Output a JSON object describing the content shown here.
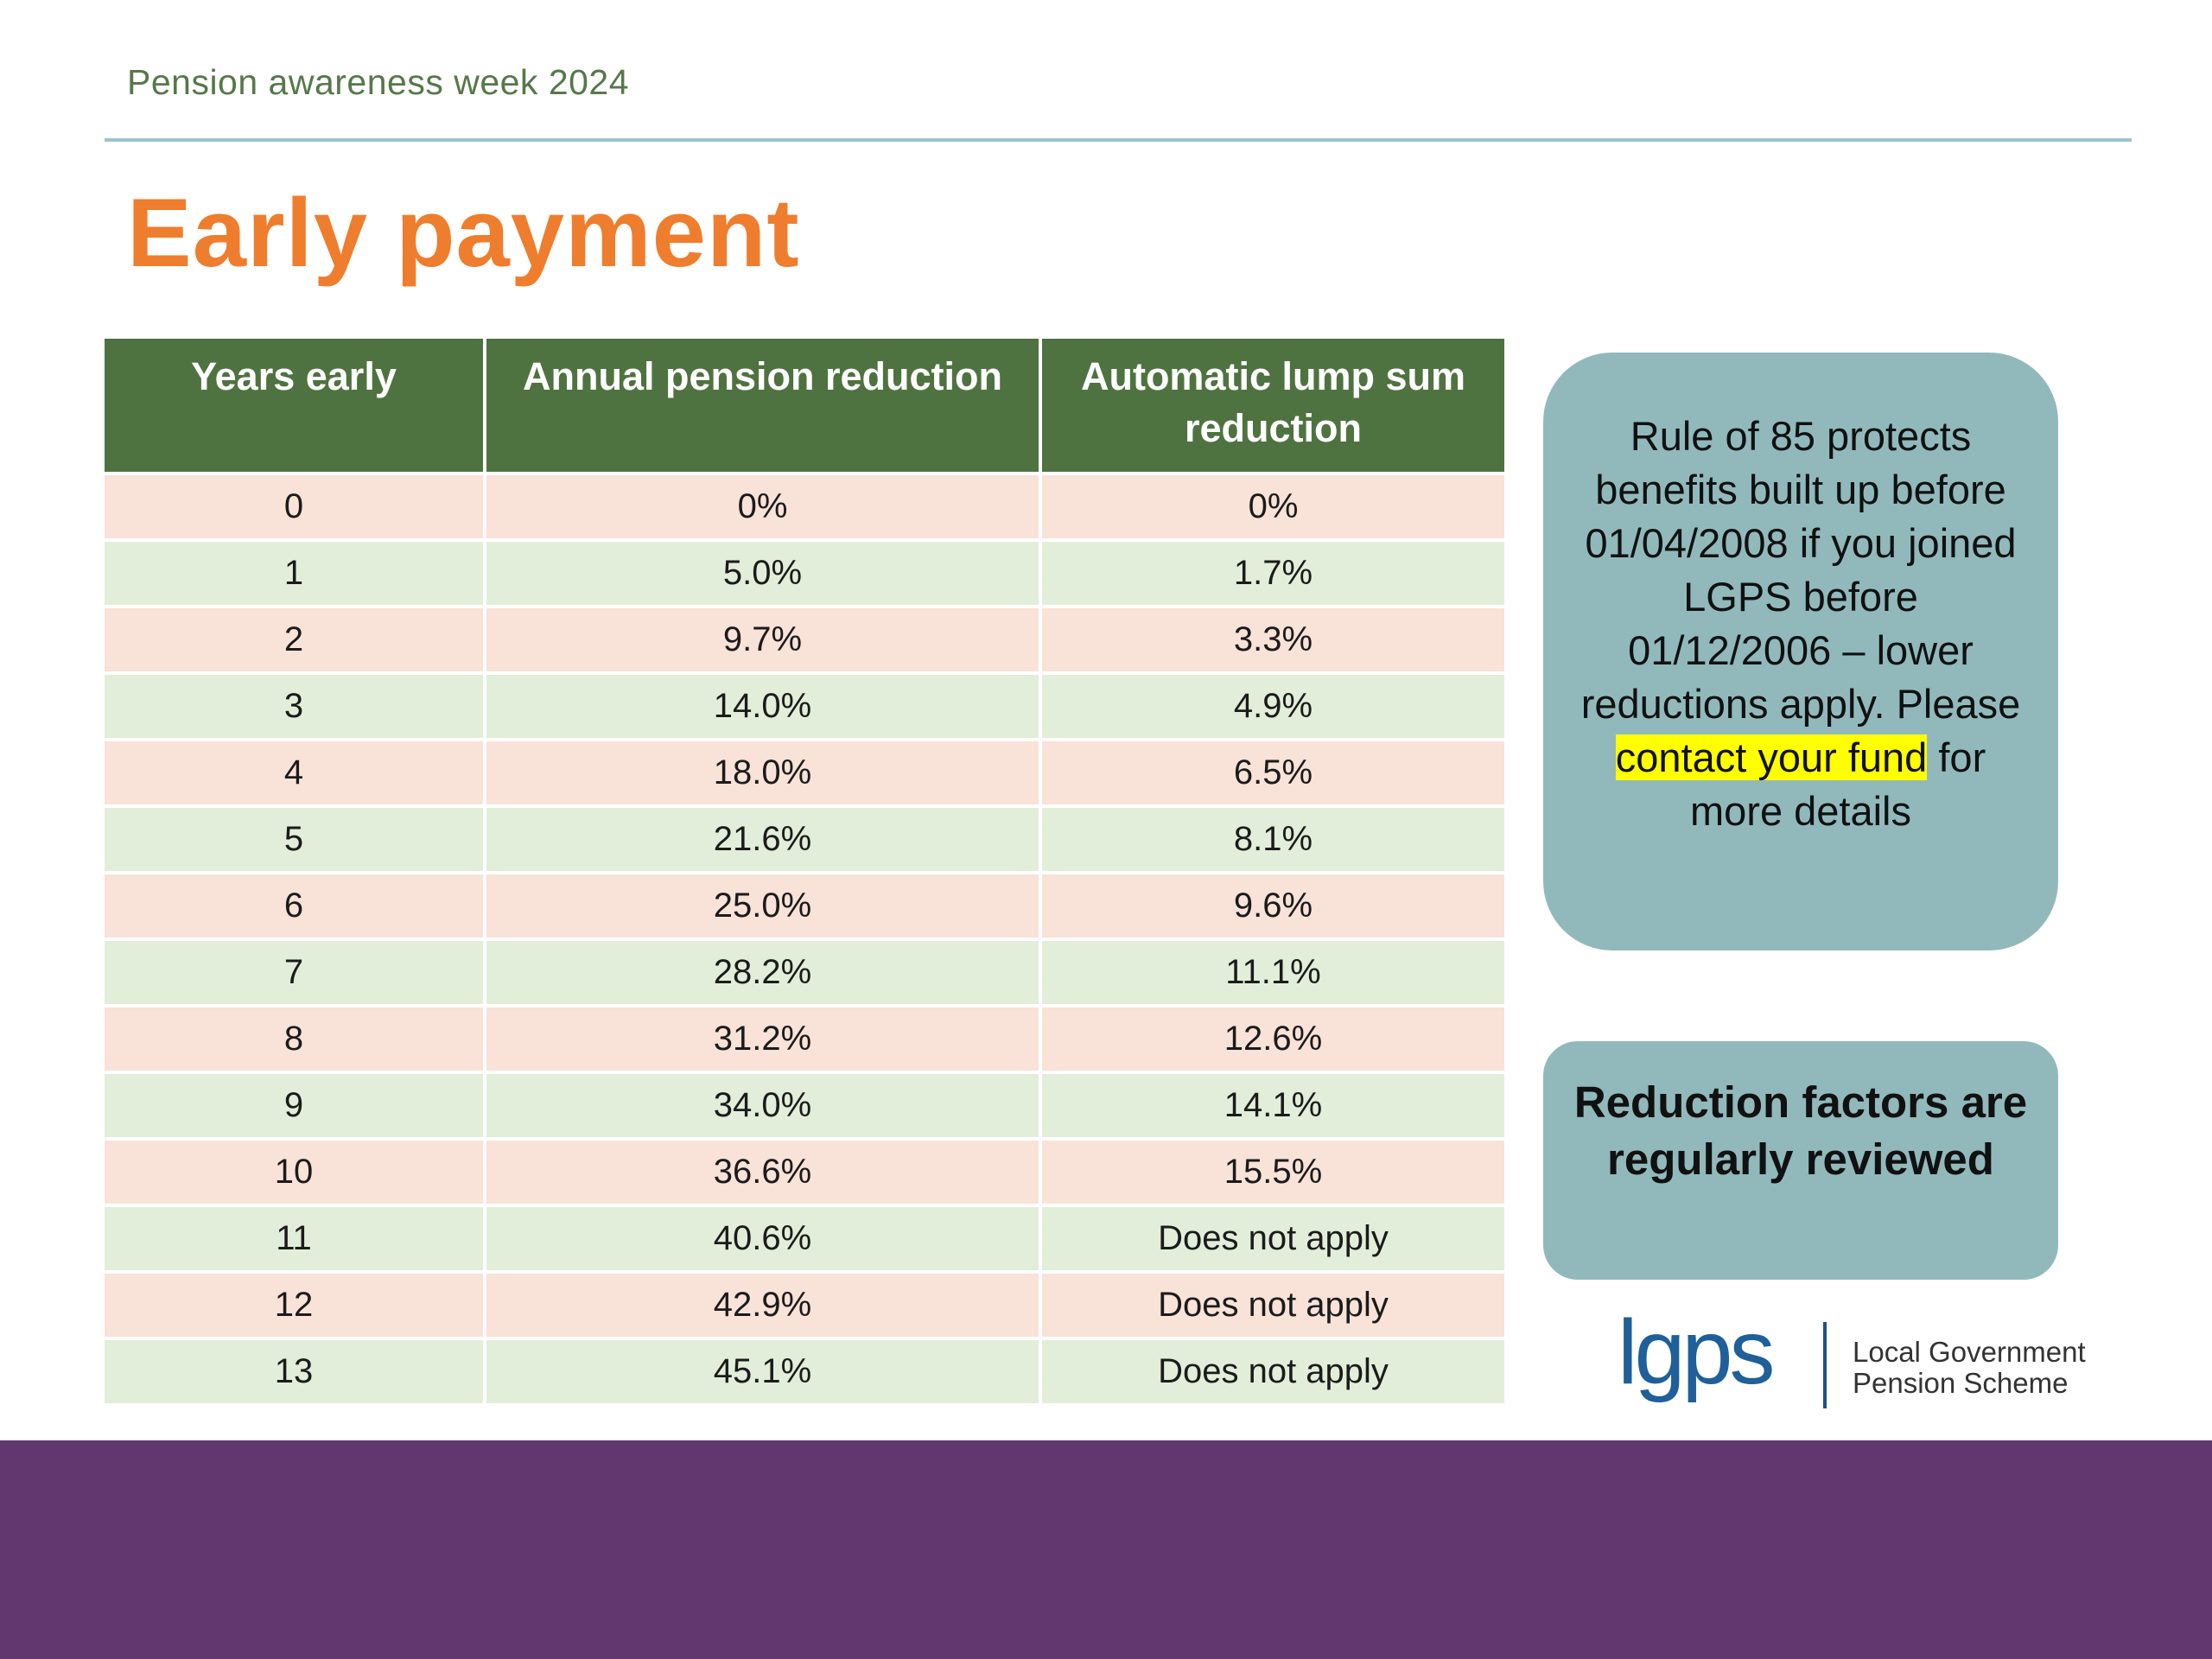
{
  "header": {
    "label": "Pension awareness week 2024",
    "title": "Early payment"
  },
  "table": {
    "columns": [
      "Years early",
      "Annual pension reduction",
      "Automatic lump sum reduction"
    ],
    "rows": [
      [
        "0",
        "0%",
        "0%"
      ],
      [
        "1",
        "5.0%",
        "1.7%"
      ],
      [
        "2",
        "9.7%",
        "3.3%"
      ],
      [
        "3",
        "14.0%",
        "4.9%"
      ],
      [
        "4",
        "18.0%",
        "6.5%"
      ],
      [
        "5",
        "21.6%",
        "8.1%"
      ],
      [
        "6",
        "25.0%",
        "9.6%"
      ],
      [
        "7",
        "28.2%",
        "11.1%"
      ],
      [
        "8",
        "31.2%",
        "12.6%"
      ],
      [
        "9",
        "34.0%",
        "14.1%"
      ],
      [
        "10",
        "36.6%",
        "15.5%"
      ],
      [
        "11",
        "40.6%",
        "Does not apply"
      ],
      [
        "12",
        "42.9%",
        "Does not apply"
      ],
      [
        "13",
        "45.1%",
        "Does not apply"
      ]
    ]
  },
  "note": {
    "text_before": "Rule of 85 protects benefits built up before 01/04/2008 if you joined LGPS before 01/12/2006 – lower reductions apply. Please ",
    "highlighted": "contact your fund",
    "text_after": " for more details"
  },
  "review_note": "Reduction factors are regularly reviewed",
  "logo": {
    "mark": "lgps",
    "line1": "Local Government",
    "line2": "Pension Scheme"
  },
  "colors": {
    "header_green": "#4f7340",
    "title_orange": "#ef7d2e",
    "row_peach": "#f9e2d8",
    "row_green": "#e2eed9",
    "box_teal": "#91b9bb",
    "footer_purple": "#62376f",
    "highlight_yellow": "#ffff00"
  }
}
